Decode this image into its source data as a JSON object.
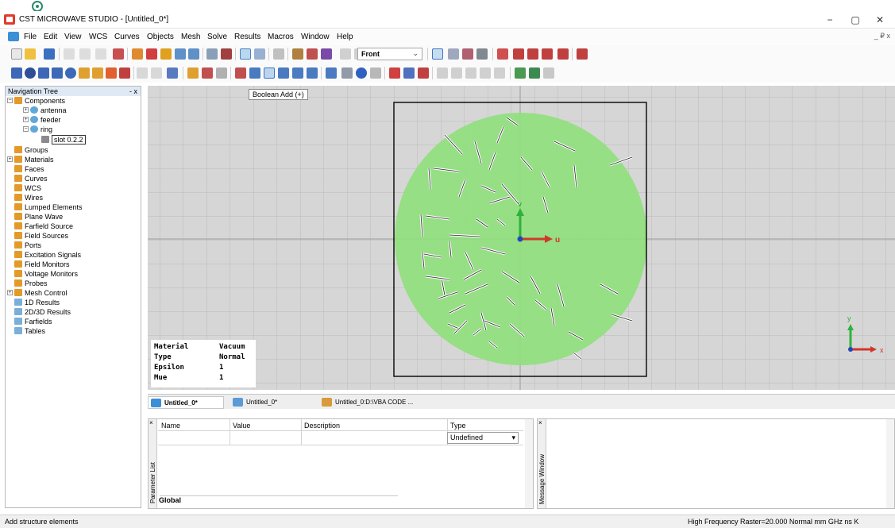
{
  "window": {
    "title": "CST MICROWAVE STUDIO - [Untitled_0*]",
    "minimize": "−",
    "maximize": "▢",
    "close": "✕"
  },
  "menu": {
    "items": [
      "File",
      "Edit",
      "View",
      "WCS",
      "Curves",
      "Objects",
      "Mesh",
      "Solve",
      "Results",
      "Macros",
      "Window",
      "Help"
    ],
    "mdi_controls": "_ ₽ x"
  },
  "toolbar": {
    "view_select": "Front"
  },
  "tooltip": "Boolean Add (+)",
  "nav_tree": {
    "title": "Navigation Tree",
    "close": "- x",
    "items": [
      "Components",
      "antenna",
      "feeder",
      "ring",
      "slot 0.2.2",
      "Groups",
      "Materials",
      "Faces",
      "Curves",
      "WCS",
      "Wires",
      "Lumped Elements",
      "Plane Wave",
      "Farfield Source",
      "Field Sources",
      "Ports",
      "Excitation Signals",
      "Field Monitors",
      "Voltage Monitors",
      "Probes",
      "Mesh Control",
      "1D Results",
      "2D/3D Results",
      "Farfields",
      "Tables"
    ]
  },
  "viewport": {
    "axis_u": "u",
    "axis_v": "v",
    "mini_axis_x": "x",
    "mini_axis_y": "y",
    "substrate_color": "#8fe07c",
    "frame_color": "#111111"
  },
  "material_info": {
    "rows": [
      {
        "label": "Material",
        "value": "Vacuum"
      },
      {
        "label": "Type",
        "value": "Normal"
      },
      {
        "label": "Epsilon",
        "value": "1"
      },
      {
        "label": "Mue",
        "value": "1"
      }
    ]
  },
  "doc_tabs": [
    "Untitled_0*",
    "Untitled_0*",
    "Untitled_0:D:\\VBA CODE ..."
  ],
  "param_list": {
    "side_label": "Parameter List",
    "columns": [
      "Name",
      "Value",
      "Description",
      "Type"
    ],
    "type_value": "Undefined",
    "tab": "Global"
  },
  "message_window": {
    "side_label": "Message Window"
  },
  "status": {
    "left": "Add structure elements",
    "right": "High Frequency   Raster=20.000   Normal   mm   GHz   ns   K"
  }
}
